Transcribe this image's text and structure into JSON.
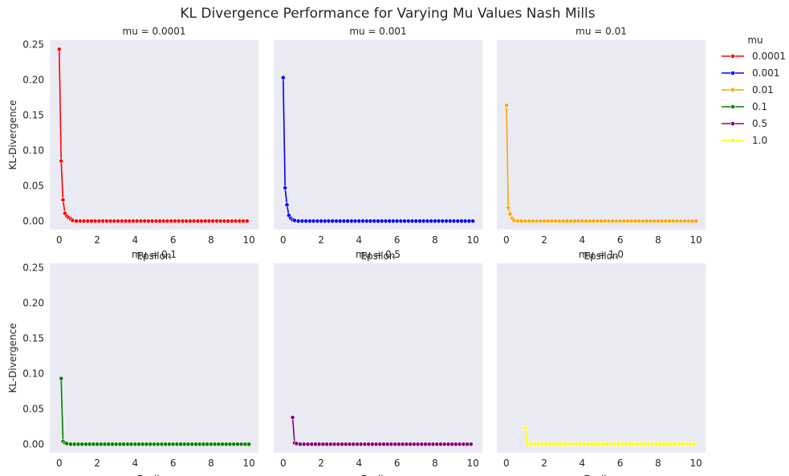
{
  "chart_data": {
    "type": "line",
    "title": "KL Divergence Performance for Varying Mu Values Nash Mills",
    "xlabel": "Epsilon",
    "ylabel": "KL-Divergence",
    "xlim": [
      -0.5,
      10.5
    ],
    "ylim": [
      -0.012,
      0.256
    ],
    "xticks": [
      0,
      2,
      4,
      6,
      8,
      10
    ],
    "yticks": [
      0.0,
      0.05,
      0.1,
      0.15,
      0.2,
      0.25
    ],
    "ytick_labels": [
      "0.00",
      "0.05",
      "0.10",
      "0.15",
      "0.20",
      "0.25"
    ],
    "grid": false,
    "legend": {
      "title": "mu",
      "placement": "outside-right-top"
    },
    "background_color": "#eaeaf2",
    "panels": [
      {
        "title": "mu = 0.0001",
        "series": "0.0001"
      },
      {
        "title": "mu = 0.001",
        "series": "0.001"
      },
      {
        "title": "mu = 0.01",
        "series": "0.01"
      },
      {
        "title": "mu = 0.1",
        "series": "0.1"
      },
      {
        "title": "mu = 0.5",
        "series": "0.5"
      },
      {
        "title": "mu = 1.0",
        "series": "1.0"
      }
    ],
    "series": [
      {
        "name": "0.0001",
        "color": "#ff0000",
        "points": [
          [
            0.0001,
            0.243
          ],
          [
            0.1,
            0.085
          ],
          [
            0.2,
            0.03
          ],
          [
            0.3,
            0.011
          ],
          [
            0.4,
            0.007
          ],
          [
            0.5,
            0.005
          ],
          [
            0.6,
            0.003
          ],
          [
            0.7,
            0.001
          ]
        ]
      },
      {
        "name": "0.001",
        "color": "#0000ff",
        "points": [
          [
            0.001,
            0.203
          ],
          [
            0.1,
            0.047
          ],
          [
            0.2,
            0.023
          ],
          [
            0.3,
            0.008
          ],
          [
            0.4,
            0.004
          ],
          [
            0.5,
            0.002
          ],
          [
            0.6,
            0.001
          ]
        ]
      },
      {
        "name": "0.01",
        "color": "#ffa500",
        "points": [
          [
            0.01,
            0.164
          ],
          [
            0.1,
            0.019
          ],
          [
            0.2,
            0.01
          ],
          [
            0.3,
            0.004
          ],
          [
            0.4,
            0.001
          ]
        ]
      },
      {
        "name": "0.1",
        "color": "#008000",
        "points": [
          [
            0.1,
            0.093
          ],
          [
            0.2,
            0.004
          ],
          [
            0.3,
            0.002
          ],
          [
            0.4,
            0.001
          ]
        ]
      },
      {
        "name": "0.5",
        "color": "#800080",
        "points": [
          [
            0.5,
            0.038
          ],
          [
            0.6,
            0.002
          ],
          [
            0.7,
            0.001
          ]
        ]
      },
      {
        "name": "1.0",
        "color": "#ffff00",
        "points": [
          [
            1.0,
            0.023
          ],
          [
            1.1,
            0.001
          ]
        ]
      }
    ],
    "tail": {
      "step": 0.2,
      "end": 10,
      "value": 0.0
    }
  }
}
